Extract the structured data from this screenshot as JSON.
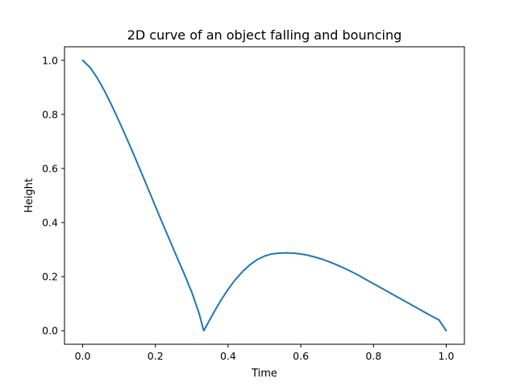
{
  "chart_data": {
    "type": "line",
    "title": "2D curve of an object falling and bouncing",
    "xlabel": "Time",
    "ylabel": "Height",
    "xlim": [
      -0.05,
      1.05
    ],
    "ylim": [
      -0.05,
      1.05
    ],
    "grid": false,
    "x_ticks": [
      0.0,
      0.2,
      0.4,
      0.6,
      0.8,
      1.0
    ],
    "x_tick_labels": [
      "0.0",
      "0.2",
      "0.4",
      "0.6",
      "0.8",
      "1.0"
    ],
    "y_ticks": [
      0.0,
      0.2,
      0.4,
      0.6,
      0.8,
      1.0
    ],
    "y_tick_labels": [
      "0.0",
      "0.2",
      "0.4",
      "0.6",
      "0.8",
      "1.0"
    ],
    "series": [
      {
        "color": "#1f77b4",
        "x": [
          0.0,
          0.02,
          0.04,
          0.06,
          0.08,
          0.1,
          0.12,
          0.14,
          0.16,
          0.18,
          0.2,
          0.22,
          0.24,
          0.26,
          0.28,
          0.3,
          0.32,
          0.333,
          0.36,
          0.38,
          0.4,
          0.42,
          0.44,
          0.46,
          0.48,
          0.5,
          0.52,
          0.54,
          0.56,
          0.58,
          0.6,
          0.62,
          0.64,
          0.66,
          0.68,
          0.7,
          0.72,
          0.74,
          0.76,
          0.78,
          0.8,
          0.82,
          0.84,
          0.86,
          0.88,
          0.9,
          0.92,
          0.94,
          0.96,
          0.98,
          1.0
        ],
        "y": [
          1.0,
          0.974,
          0.935,
          0.887,
          0.833,
          0.775,
          0.715,
          0.653,
          0.589,
          0.525,
          0.46,
          0.396,
          0.333,
          0.27,
          0.208,
          0.143,
          0.065,
          0.0,
          0.066,
          0.112,
          0.153,
          0.189,
          0.219,
          0.244,
          0.263,
          0.276,
          0.284,
          0.287,
          0.288,
          0.287,
          0.284,
          0.279,
          0.272,
          0.264,
          0.254,
          0.243,
          0.231,
          0.218,
          0.204,
          0.189,
          0.174,
          0.159,
          0.144,
          0.129,
          0.114,
          0.099,
          0.084,
          0.069,
          0.054,
          0.04,
          0.0
        ]
      }
    ]
  }
}
